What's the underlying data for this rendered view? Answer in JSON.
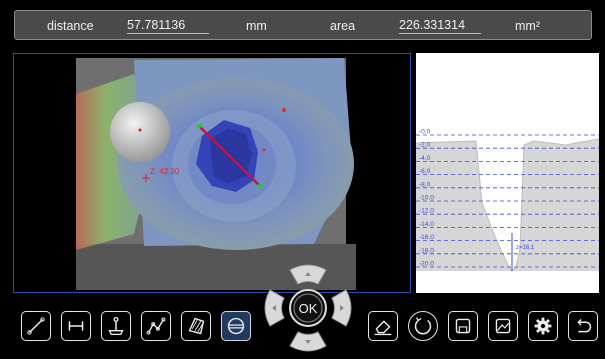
{
  "measurements": {
    "distance_label": "distance",
    "distance_value": "57.781136",
    "distance_unit": "mm",
    "area_label": "area",
    "area_value": "226.331314",
    "area_unit": "mm²"
  },
  "view": {
    "z_annotation": "Z: 43.30"
  },
  "profile": {
    "y_ticks": [
      "-0.0",
      "-2.0",
      "-4.0",
      "-6.0",
      "-8.0",
      "-10.0",
      "-12.0",
      "-14.0",
      "-16.0",
      "-18.0",
      "-20.0"
    ],
    "marker_label": "z=16.1"
  },
  "dpad": {
    "ok_label": "OK"
  },
  "toolbar": {
    "tools": [
      {
        "name": "line-tool-icon"
      },
      {
        "name": "distance-tool-icon"
      },
      {
        "name": "height-tool-icon"
      },
      {
        "name": "polyline-tool-icon"
      },
      {
        "name": "area-tool-icon"
      },
      {
        "name": "profile-tool-icon"
      }
    ],
    "actions": [
      {
        "name": "eraser-icon"
      },
      {
        "name": "reset-icon"
      },
      {
        "name": "save-icon"
      },
      {
        "name": "export-image-icon"
      },
      {
        "name": "settings-gear-icon"
      },
      {
        "name": "back-icon"
      }
    ]
  },
  "colors": {
    "panel_border": "#2f4fae",
    "active_tool_bg": "#223a5e",
    "measure_line": "#c0134a",
    "profile_fill": "#d6d6d6",
    "grid_dash": "#3a4bd6"
  }
}
